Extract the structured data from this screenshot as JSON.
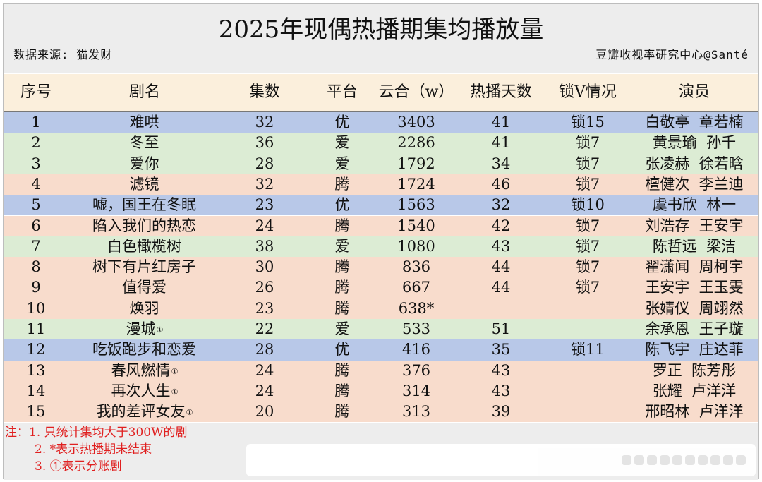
{
  "header": {
    "title": "2025年现偶热播期集均播放量",
    "source": "数据来源: 猫发财",
    "credit": "豆瓣收视率研究中心@Santé"
  },
  "columns": {
    "idx": "序号",
    "name": "剧名",
    "eps": "集数",
    "platform": "平台",
    "yunhe": "云合（w）",
    "days": "热播天数",
    "lock": "锁V情况",
    "cast": "演员"
  },
  "rows": [
    {
      "idx": "1",
      "name": "难哄",
      "mark": "",
      "eps": "32",
      "platform": "优",
      "yunhe": "3403",
      "days": "41",
      "lock": "锁15",
      "cast": "白敬亭  章若楠"
    },
    {
      "idx": "2",
      "name": "冬至",
      "mark": "",
      "eps": "36",
      "platform": "爱",
      "yunhe": "2286",
      "days": "41",
      "lock": "锁7",
      "cast": "黄景瑜  孙千"
    },
    {
      "idx": "3",
      "name": "爱你",
      "mark": "",
      "eps": "28",
      "platform": "爱",
      "yunhe": "1792",
      "days": "34",
      "lock": "锁7",
      "cast": "张凌赫  徐若晗"
    },
    {
      "idx": "4",
      "name": "滤镜",
      "mark": "",
      "eps": "32",
      "platform": "腾",
      "yunhe": "1724",
      "days": "46",
      "lock": "锁7",
      "cast": "檀健次  李兰迪"
    },
    {
      "idx": "5",
      "name": "嘘，国王在冬眠",
      "mark": "",
      "eps": "23",
      "platform": "优",
      "yunhe": "1563",
      "days": "32",
      "lock": "锁10",
      "cast": "虞书欣  林一"
    },
    {
      "idx": "6",
      "name": "陷入我们的热恋",
      "mark": "",
      "eps": "24",
      "platform": "腾",
      "yunhe": "1540",
      "days": "42",
      "lock": "锁7",
      "cast": "刘浩存  王安宇"
    },
    {
      "idx": "7",
      "name": "白色橄榄树",
      "mark": "",
      "eps": "38",
      "platform": "爱",
      "yunhe": "1080",
      "days": "43",
      "lock": "锁7",
      "cast": "陈哲远  梁洁"
    },
    {
      "idx": "8",
      "name": "树下有片红房子",
      "mark": "",
      "eps": "30",
      "platform": "腾",
      "yunhe": "836",
      "days": "44",
      "lock": "锁7",
      "cast": "翟潇闻  周柯宇"
    },
    {
      "idx": "9",
      "name": "值得爱",
      "mark": "",
      "eps": "26",
      "platform": "腾",
      "yunhe": "667",
      "days": "44",
      "lock": "锁7",
      "cast": "王安宇  王玉雯"
    },
    {
      "idx": "10",
      "name": "焕羽",
      "mark": "",
      "eps": "23",
      "platform": "腾",
      "yunhe": "638*",
      "days": "",
      "lock": "",
      "cast": "张婧仪  周翊然"
    },
    {
      "idx": "11",
      "name": "漫城",
      "mark": "①",
      "eps": "22",
      "platform": "爱",
      "yunhe": "533",
      "days": "51",
      "lock": "",
      "cast": "余承恩  王子璇"
    },
    {
      "idx": "12",
      "name": "吃饭跑步和恋爱",
      "mark": "",
      "eps": "28",
      "platform": "优",
      "yunhe": "416",
      "days": "35",
      "lock": "锁11",
      "cast": "陈飞宇  庄达菲"
    },
    {
      "idx": "13",
      "name": "春风燃情",
      "mark": "①",
      "eps": "24",
      "platform": "腾",
      "yunhe": "376",
      "days": "43",
      "lock": "",
      "cast": "罗正  陈芳彤"
    },
    {
      "idx": "14",
      "name": "再次人生",
      "mark": "①",
      "eps": "24",
      "platform": "腾",
      "yunhe": "314",
      "days": "43",
      "lock": "",
      "cast": "张耀  卢洋洋"
    },
    {
      "idx": "15",
      "name": "我的差评女友",
      "mark": "①",
      "eps": "20",
      "platform": "腾",
      "yunhe": "313",
      "days": "39",
      "lock": "",
      "cast": "邢昭林  卢洋洋"
    }
  ],
  "row_colors": [
    "#b8c8e8",
    "#dcecd4",
    "#dcecd4",
    "#f8dccc",
    "#b8c8e8",
    "#f8dccc",
    "#dcecd4",
    "#f8dccc",
    "#f8dccc",
    "#f8dccc",
    "#dcecd4",
    "#b8c8e8",
    "#f8dccc",
    "#f8dccc",
    "#f8dccc"
  ],
  "notes": [
    "注：1. 只统计集均大于300W的剧",
    "2. *表示热播期未结束",
    "3. ①表示分账剧"
  ],
  "colors": {
    "note_text": "#e02020",
    "header_bg": "#fbefdc",
    "title_bg": "#ededed"
  }
}
